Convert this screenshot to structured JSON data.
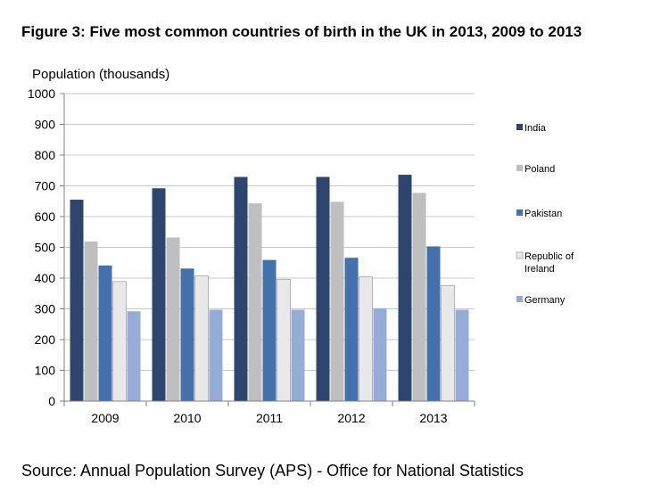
{
  "title": "Figure 3: Five most common countries of birth in the UK in 2013, 2009 to 2013",
  "source": "Source: Annual Population Survey (APS) - Office for National Statistics",
  "colors": {
    "India": "#2e466e",
    "Poland": "#bfbfbf",
    "Pakistan": "#4470ab",
    "Republic of Ireland": "#e8e8e8",
    "Germany": "#95add6"
  },
  "chart_data": {
    "type": "bar",
    "title": "Figure 3: Five most common countries of birth in the UK in 2013, 2009 to 2013",
    "ylabel": "Population (thousands)",
    "xlabel": "",
    "ylim": [
      0,
      1000
    ],
    "yticks": [
      "0",
      "100",
      "200",
      "300",
      "400",
      "500",
      "600",
      "700",
      "800",
      "900",
      "1000"
    ],
    "categories": [
      "2009",
      "2010",
      "2011",
      "2012",
      "2013"
    ],
    "legend_position": "right",
    "series": [
      {
        "name": "India",
        "legend": [
          "India"
        ],
        "values": [
          655,
          692,
          729,
          729,
          736
        ]
      },
      {
        "name": "Poland",
        "legend": [
          "Poland"
        ],
        "values": [
          519,
          532,
          643,
          648,
          677
        ]
      },
      {
        "name": "Pakistan",
        "legend": [
          "Pakistan"
        ],
        "values": [
          441,
          431,
          459,
          466,
          503
        ]
      },
      {
        "name": "Republic of Ireland",
        "legend": [
          "Republic of",
          "Ireland"
        ],
        "values": [
          389,
          407,
          396,
          404,
          376
        ]
      },
      {
        "name": "Germany",
        "legend": [
          "Germany"
        ],
        "values": [
          292,
          297,
          297,
          302,
          297
        ]
      }
    ]
  }
}
